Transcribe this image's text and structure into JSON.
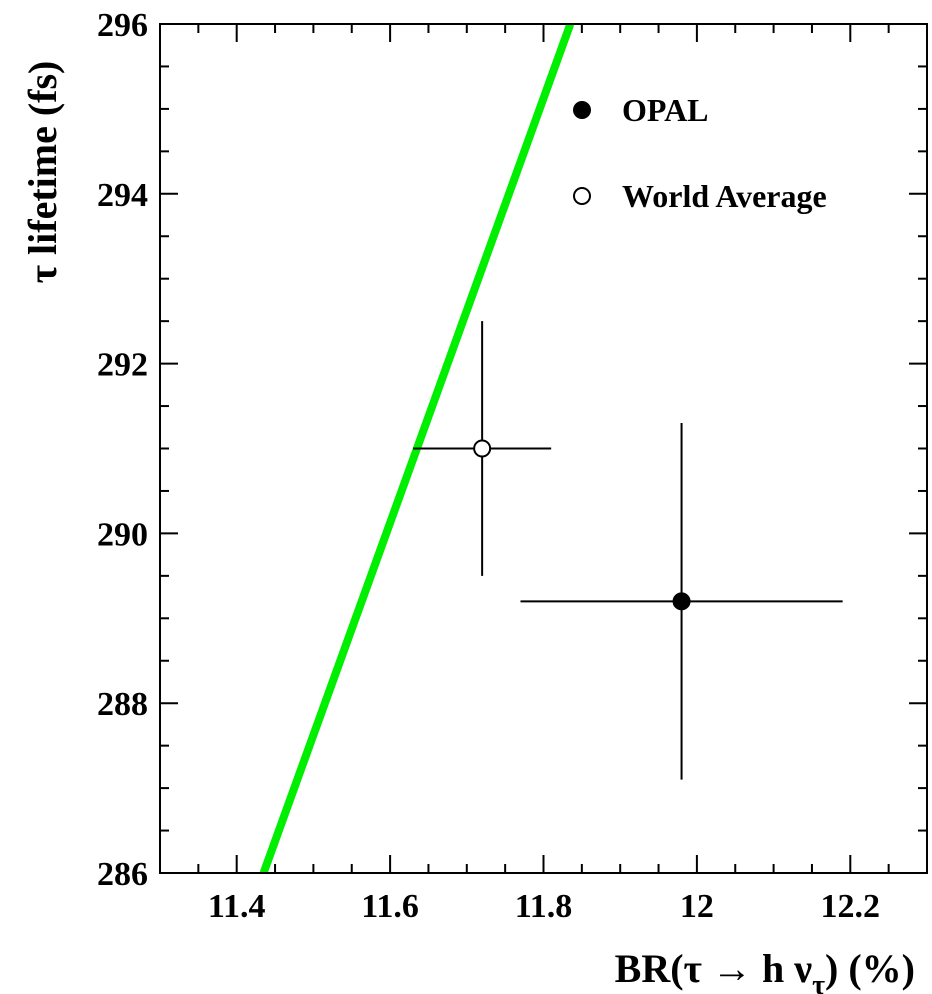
{
  "chart_data": {
    "type": "scatter",
    "xlabel": "BR(τ → h ν",
    "xlabel_sub": "τ",
    "xlabel_suffix": ")  (%)",
    "ylabel": "τ lifetime  (fs)",
    "xlim": [
      11.3,
      12.3
    ],
    "ylim": [
      286,
      296
    ],
    "xticks": [
      11.4,
      11.6,
      11.8,
      12.0,
      12.2
    ],
    "xtick_labels": [
      "11.4",
      "11.6",
      "11.8",
      "12",
      "12.2"
    ],
    "yticks": [
      286,
      288,
      290,
      292,
      294,
      296
    ],
    "ytick_labels": [
      "286",
      "288",
      "290",
      "292",
      "294",
      "296"
    ],
    "grid": false,
    "legend_position": "top-right",
    "series": [
      {
        "name": "OPAL",
        "marker": "filled-circle",
        "color": "#000000",
        "points": [
          {
            "x": 11.98,
            "y": 289.2,
            "x_lo": 11.77,
            "x_hi": 12.19,
            "y_lo": 287.1,
            "y_hi": 291.3
          }
        ]
      },
      {
        "name": "World Average",
        "marker": "open-circle",
        "color": "#000000",
        "points": [
          {
            "x": 11.72,
            "y": 291.0,
            "x_lo": 11.63,
            "x_hi": 11.81,
            "y_lo": 289.5,
            "y_hi": 292.5
          }
        ]
      }
    ],
    "lines": [
      {
        "color": "#00ee00",
        "points": [
          [
            11.435,
            286.0
          ],
          [
            11.835,
            296.0
          ]
        ]
      }
    ]
  }
}
